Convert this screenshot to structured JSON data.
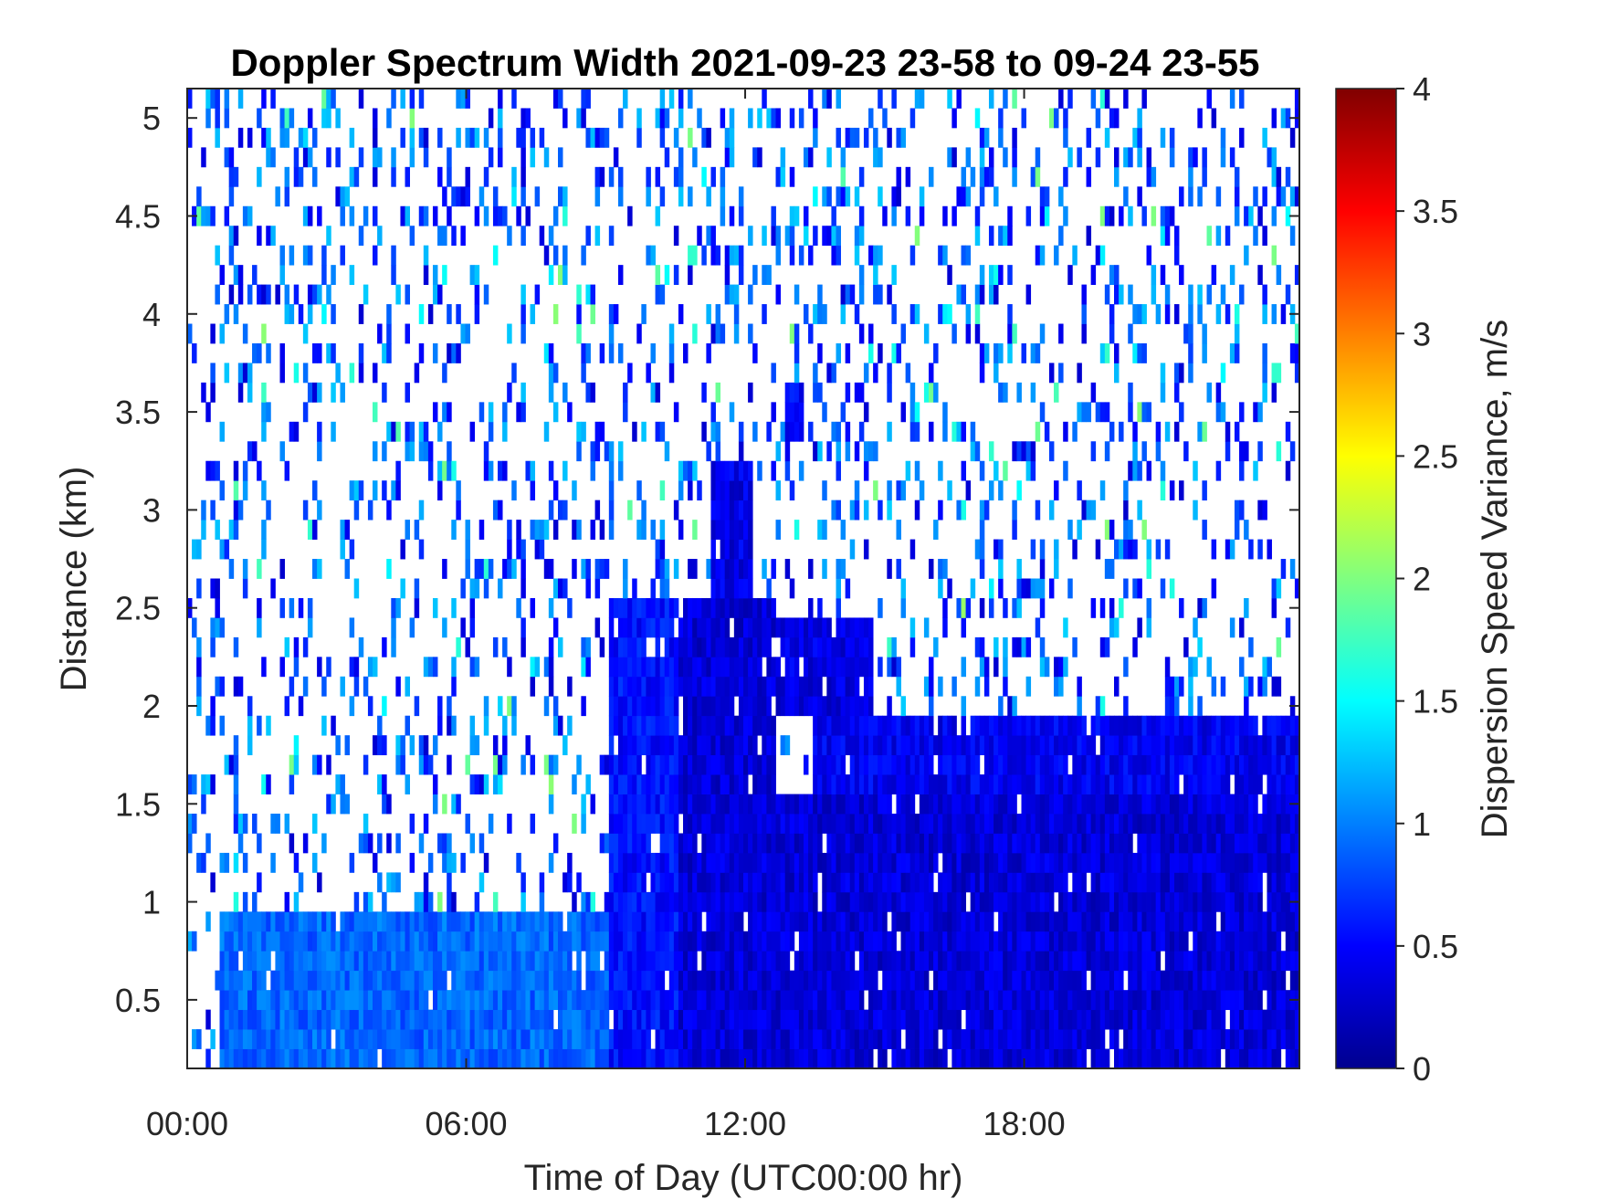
{
  "chart_data": {
    "type": "heatmap",
    "title": "Doppler Spectrum Width 2021-09-23 23-58 to 09-24 23-55",
    "xlabel": "Time of Day (UTC00:00 hr)",
    "ylabel": "Distance (km)",
    "colorbar_label": "Dispersion Speed Variance, m/s",
    "colormap": "jet",
    "xlim": [
      0,
      23.92
    ],
    "ylim": [
      0.15,
      5.15
    ],
    "clim": [
      0,
      4
    ],
    "x_ticks": [
      {
        "value": 0,
        "label": "00:00"
      },
      {
        "value": 6,
        "label": "06:00"
      },
      {
        "value": 12,
        "label": "12:00"
      },
      {
        "value": 18,
        "label": "18:00"
      }
    ],
    "y_ticks": [
      {
        "value": 0.5,
        "label": "0.5"
      },
      {
        "value": 1,
        "label": "1"
      },
      {
        "value": 1.5,
        "label": "1.5"
      },
      {
        "value": 2,
        "label": "2"
      },
      {
        "value": 2.5,
        "label": "2.5"
      },
      {
        "value": 3,
        "label": "3"
      },
      {
        "value": 3.5,
        "label": "3.5"
      },
      {
        "value": 4,
        "label": "4"
      },
      {
        "value": 4.5,
        "label": "4.5"
      },
      {
        "value": 5,
        "label": "5"
      }
    ],
    "colorbar_ticks": [
      {
        "value": 0,
        "label": "0"
      },
      {
        "value": 0.5,
        "label": "0.5"
      },
      {
        "value": 1,
        "label": "1"
      },
      {
        "value": 1.5,
        "label": "1.5"
      },
      {
        "value": 2,
        "label": "2"
      },
      {
        "value": 2.5,
        "label": "2.5"
      },
      {
        "value": 3,
        "label": "3"
      },
      {
        "value": 3.5,
        "label": "3.5"
      },
      {
        "value": 4,
        "label": "4"
      }
    ],
    "background_value": 0.8,
    "dense_regions": [
      {
        "t_start": 0.7,
        "t_end": 9.2,
        "z_bottom": 0.15,
        "z_top": 1.0,
        "value": 0.9
      },
      {
        "t_start": 9.1,
        "t_end": 10.6,
        "z_bottom": 0.15,
        "z_top": 2.6,
        "value": 0.55
      },
      {
        "t_start": 10.6,
        "t_end": 12.7,
        "z_bottom": 0.15,
        "z_top": 2.6,
        "value": 0.35
      },
      {
        "t_start": 11.3,
        "t_end": 12.2,
        "z_bottom": 2.6,
        "z_top": 3.25,
        "value": 0.4
      },
      {
        "t_start": 12.7,
        "t_end": 14.8,
        "z_bottom": 1.95,
        "z_top": 2.45,
        "value": 0.4
      },
      {
        "t_start": 12.7,
        "t_end": 23.92,
        "z_bottom": 0.15,
        "z_top": 1.55,
        "value": 0.35
      },
      {
        "t_start": 13.5,
        "t_end": 23.92,
        "z_bottom": 1.55,
        "z_top": 2.0,
        "value": 0.45
      },
      {
        "t_start": 12.9,
        "t_end": 13.3,
        "z_bottom": 3.35,
        "z_top": 3.65,
        "value": 0.5
      }
    ]
  }
}
